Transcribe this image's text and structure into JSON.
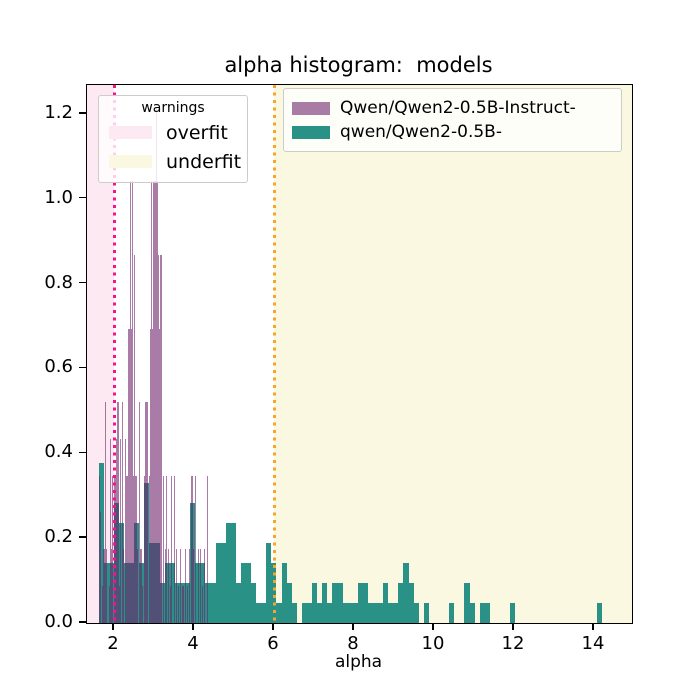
{
  "title": "alpha histogram:  models",
  "xlabel": "alpha",
  "legends": {
    "warnings": {
      "title": "warnings",
      "entries": [
        {
          "label": "overfit",
          "color": "#fce9f2"
        },
        {
          "label": "underfit",
          "color": "#fbf8e2"
        }
      ]
    },
    "models": {
      "entries": [
        {
          "label": "Qwen/Qwen2-0.5B-Instruct-",
          "color": "rgba(110,37,107,0.6)"
        },
        {
          "label": "qwen/Qwen2-0.5B-",
          "color": "#2a9187"
        }
      ]
    }
  },
  "chart_data": {
    "type": "bar",
    "subtype": "overlaid-histograms",
    "title": "alpha histogram:  models",
    "xlabel": "alpha",
    "ylabel": "",
    "grid": false,
    "xlim": [
      1.325,
      14.95
    ],
    "ylim": [
      0,
      1.268
    ],
    "xticks": [
      2,
      4,
      6,
      8,
      10,
      12,
      14
    ],
    "yticks": [
      0.0,
      0.2,
      0.4,
      0.6,
      0.8,
      1.0,
      1.2
    ],
    "ytick_labels": [
      "0.0",
      "0.2",
      "0.4",
      "0.6",
      "0.8",
      "1.0",
      "1.2"
    ],
    "regions": [
      {
        "name": "overfit",
        "xmin": 1.325,
        "xmax": 2.0,
        "color": "#fce9f2"
      },
      {
        "name": "underfit",
        "xmin": 6.0,
        "xmax": 14.95,
        "color": "#fbf8e2"
      }
    ],
    "vlines": [
      {
        "name": "overfit-threshold",
        "x": 2.0,
        "color": "#f5148f",
        "style": "dotted"
      },
      {
        "name": "underfit-threshold",
        "x": 6.0,
        "color": "#f6a52b",
        "style": "dotted"
      }
    ],
    "series": [
      {
        "name": "Qwen/Qwen2-0.5B-Instruct-",
        "color": "rgba(110,37,107,0.6)",
        "bin_width": 0.028,
        "bars": [
          [
            1.625,
            0.347
          ],
          [
            1.653,
            0.261
          ],
          [
            1.709,
            0.087
          ],
          [
            1.737,
            0.174
          ],
          [
            1.779,
            0.521
          ],
          [
            1.807,
            0.174
          ],
          [
            1.863,
            0.087
          ],
          [
            1.891,
            0.434
          ],
          [
            1.919,
            0.174
          ],
          [
            1.947,
            0.347
          ],
          [
            1.989,
            0.347
          ],
          [
            2.017,
            0.347
          ],
          [
            2.045,
            0.434
          ],
          [
            2.087,
            0.521
          ],
          [
            2.129,
            0.087
          ],
          [
            2.157,
            0.434
          ],
          [
            2.199,
            0.521
          ],
          [
            2.227,
            0.174
          ],
          [
            2.269,
            0.434
          ],
          [
            2.311,
            0.347
          ],
          [
            2.339,
            0.694
          ],
          [
            2.367,
            0.694
          ],
          [
            2.395,
            1.042
          ],
          [
            2.423,
            0.694
          ],
          [
            2.451,
            1.042
          ],
          [
            2.479,
            0.347
          ],
          [
            2.507,
            0.868
          ],
          [
            2.535,
            0.347
          ],
          [
            2.563,
            0.174
          ],
          [
            2.619,
            0.521
          ],
          [
            2.661,
            0.174
          ],
          [
            2.703,
            0.087
          ],
          [
            2.745,
            0.347
          ],
          [
            2.787,
            0.521
          ],
          [
            2.829,
            0.521
          ],
          [
            2.871,
            0.347
          ],
          [
            2.899,
            0.694
          ],
          [
            2.927,
            1.042
          ],
          [
            2.955,
            0.694
          ],
          [
            2.983,
            1.042
          ],
          [
            3.011,
            1.042
          ],
          [
            3.039,
            1.215
          ],
          [
            3.067,
            1.042
          ],
          [
            3.095,
            0.868
          ],
          [
            3.123,
            0.694
          ],
          [
            3.151,
            0.868
          ],
          [
            3.179,
            0.868
          ],
          [
            3.221,
            0.347
          ],
          [
            3.263,
            0.174
          ],
          [
            3.305,
            0.347
          ],
          [
            3.347,
            0.174
          ],
          [
            3.389,
            0.087
          ],
          [
            3.431,
            0.347
          ],
          [
            3.501,
            0.347
          ],
          [
            3.543,
            0.174
          ],
          [
            3.599,
            0.087
          ],
          [
            3.655,
            0.174
          ],
          [
            3.711,
            0.087
          ],
          [
            3.767,
            0.174
          ],
          [
            3.823,
            0.087
          ],
          [
            3.879,
            0.174
          ],
          [
            3.935,
            0.347
          ],
          [
            3.977,
            0.174
          ],
          [
            4.033,
            0.347
          ],
          [
            4.089,
            0.174
          ],
          [
            4.145,
            0.174
          ],
          [
            4.201,
            0.087
          ],
          [
            4.257,
            0.174
          ],
          [
            4.313,
            0.347
          ]
        ]
      },
      {
        "name": "qwen/Qwen2-0.5B-",
        "color": "#2a9187",
        "bin_width": 0.127,
        "bars": [
          [
            1.617,
            0.378
          ],
          [
            1.744,
            0.142
          ],
          [
            1.871,
            0.142
          ],
          [
            1.998,
            0.284
          ],
          [
            2.125,
            0.236
          ],
          [
            2.252,
            0.142
          ],
          [
            2.379,
            0.142
          ],
          [
            2.506,
            0.236
          ],
          [
            2.633,
            0.142
          ],
          [
            2.76,
            0.331
          ],
          [
            2.887,
            0.189
          ],
          [
            3.014,
            0.189
          ],
          [
            3.141,
            0.095
          ],
          [
            3.268,
            0.142
          ],
          [
            3.395,
            0.142
          ],
          [
            3.522,
            0.095
          ],
          [
            3.649,
            0.095
          ],
          [
            3.776,
            0.095
          ],
          [
            3.903,
            0.284
          ],
          [
            4.03,
            0.142
          ],
          [
            4.157,
            0.142
          ],
          [
            4.284,
            0.095
          ],
          [
            4.411,
            0.095
          ],
          [
            4.538,
            0.189
          ],
          [
            4.665,
            0.189
          ],
          [
            4.792,
            0.236
          ],
          [
            4.919,
            0.236
          ],
          [
            5.046,
            0.095
          ],
          [
            5.173,
            0.142
          ],
          [
            5.3,
            0.142
          ],
          [
            5.427,
            0.095
          ],
          [
            5.554,
            0.047
          ],
          [
            5.681,
            0.047
          ],
          [
            5.808,
            0.189
          ],
          [
            5.935,
            0.142
          ],
          [
            6.062,
            0.047
          ],
          [
            6.189,
            0.142
          ],
          [
            6.316,
            0.095
          ],
          [
            6.443,
            0.047
          ],
          [
            6.697,
            0.047
          ],
          [
            6.824,
            0.047
          ],
          [
            6.951,
            0.095
          ],
          [
            7.078,
            0.047
          ],
          [
            7.205,
            0.095
          ],
          [
            7.332,
            0.047
          ],
          [
            7.459,
            0.095
          ],
          [
            7.586,
            0.095
          ],
          [
            7.713,
            0.047
          ],
          [
            7.84,
            0.047
          ],
          [
            7.967,
            0.047
          ],
          [
            8.094,
            0.095
          ],
          [
            8.221,
            0.095
          ],
          [
            8.348,
            0.047
          ],
          [
            8.475,
            0.047
          ],
          [
            8.602,
            0.047
          ],
          [
            8.729,
            0.095
          ],
          [
            8.856,
            0.047
          ],
          [
            8.983,
            0.047
          ],
          [
            9.11,
            0.095
          ],
          [
            9.237,
            0.142
          ],
          [
            9.364,
            0.095
          ],
          [
            9.491,
            0.047
          ],
          [
            9.745,
            0.047
          ],
          [
            10.38,
            0.047
          ],
          [
            10.761,
            0.095
          ],
          [
            10.888,
            0.047
          ],
          [
            11.142,
            0.047
          ],
          [
            11.269,
            0.047
          ],
          [
            11.904,
            0.047
          ],
          [
            14.063,
            0.047
          ]
        ]
      }
    ],
    "legend_position": {
      "warnings": "upper-left",
      "models": "upper-center-right"
    }
  }
}
